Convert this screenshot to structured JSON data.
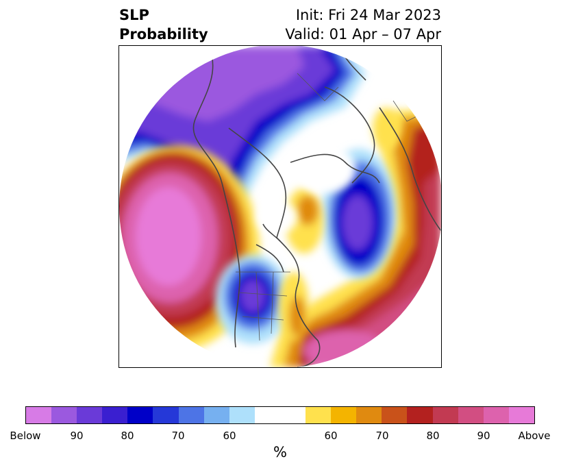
{
  "header": {
    "title_line1": "SLP",
    "title_line2": "Probability",
    "init_text": "Init: Fri 24 Mar 2023",
    "valid_text": "Valid: 01 Apr – 07 Apr"
  },
  "colorbar": {
    "colors": [
      "#d77be6",
      "#9b59df",
      "#6a3ad8",
      "#3a1fd0",
      "#0000c8",
      "#2538d8",
      "#4d74e6",
      "#76b0f0",
      "#aee0fb",
      "#ffffff",
      "#ffe14d",
      "#f4b400",
      "#e08a10",
      "#c9521a",
      "#b3211f",
      "#c23a52",
      "#d24e82",
      "#dd62ad",
      "#e77ad8"
    ],
    "labels": [
      "Below",
      "90",
      "80",
      "70",
      "60",
      "60",
      "70",
      "80",
      "90",
      "Above"
    ],
    "unit": "%"
  },
  "map": {
    "land_color": "#444444",
    "ocean_edge": "#ffffff"
  }
}
